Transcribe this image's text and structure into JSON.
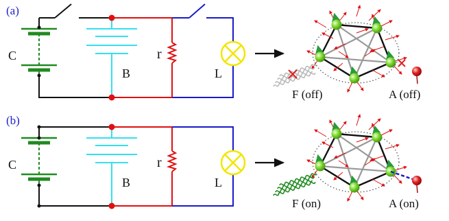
{
  "colors": {
    "panel_label": "#2020cc",
    "black_wire": "#111111",
    "red_wire": "#e01010",
    "blue_wire": "#1a1acc",
    "cyan_battery": "#33e0f0",
    "green_battery": "#1f8a1f",
    "lamp": "#f2e600",
    "atom_green": "#7cd62a",
    "spin_arrow": "#2a9a3a",
    "small_arrow": "#e01010",
    "adsorbate": "#e02020",
    "photon_on": "#1f8a1f",
    "photon_off": "#bbbbbb",
    "cross": "#e02020",
    "bond_outer": "#111111",
    "bond_inner": "#999999",
    "dashed_bond": "#1a1acc"
  },
  "panels": [
    {
      "id": "a",
      "label": "(a)",
      "battery_c_label": "C",
      "battery_b_label": "B",
      "resistor_label": "r",
      "lamp_label": "L",
      "light_label": "F (off)",
      "atom_label": "A (off)",
      "light_on": false,
      "adsorbate_bonded": false
    },
    {
      "id": "b",
      "label": "(b)",
      "battery_c_label": "C",
      "battery_b_label": "B",
      "resistor_label": "r",
      "lamp_label": "L",
      "light_label": "F (on)",
      "atom_label": "A (on)",
      "light_on": true,
      "adsorbate_bonded": true
    }
  ]
}
